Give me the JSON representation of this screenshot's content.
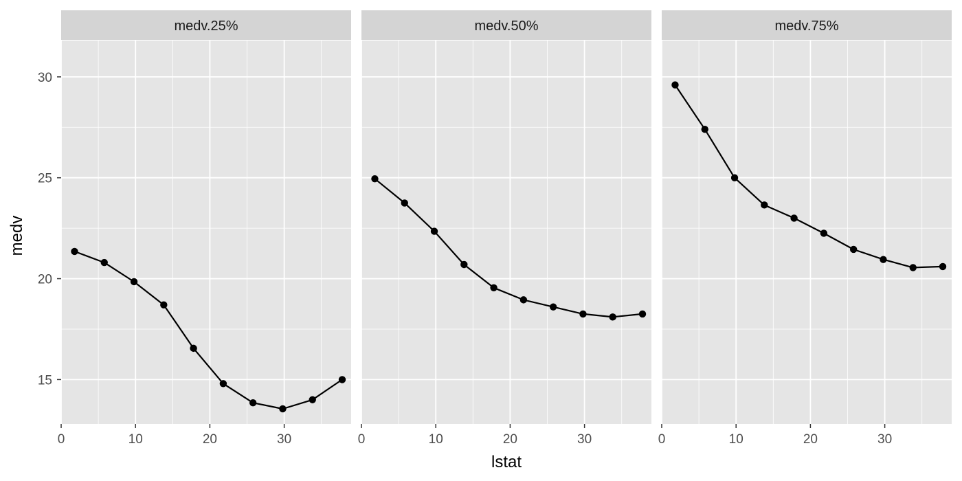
{
  "chart_data": {
    "type": "line",
    "facet_layout": "1 row x 3 columns, shared y axis",
    "xlabel": "lstat",
    "ylabel": "medv",
    "xlim": [
      0,
      39
    ],
    "ylim": [
      12.8,
      31.8
    ],
    "x_ticks": [
      0,
      10,
      20,
      30
    ],
    "y_ticks": [
      15,
      20,
      25,
      30
    ],
    "x_minor_gridlines": [
      5,
      15,
      25,
      35
    ],
    "y_minor_gridlines": [
      17.5,
      22.5,
      27.5
    ],
    "grid": true,
    "x": [
      1.8,
      5.8,
      9.8,
      13.8,
      17.8,
      21.8,
      25.8,
      29.8,
      33.8,
      37.8
    ],
    "panels": [
      {
        "label": "medv.25%",
        "values": [
          21.35,
          20.8,
          19.85,
          18.7,
          16.55,
          14.8,
          13.85,
          13.55,
          14.0,
          15.0
        ]
      },
      {
        "label": "medv.50%",
        "values": [
          24.95,
          23.75,
          22.35,
          20.7,
          19.55,
          18.95,
          18.6,
          18.25,
          18.1,
          18.25
        ]
      },
      {
        "label": "medv.75%",
        "values": [
          29.6,
          27.4,
          25.0,
          23.65,
          23.0,
          22.25,
          21.45,
          20.95,
          20.55,
          20.6
        ]
      }
    ],
    "colors": {
      "panel_background": "#e5e5e5",
      "strip_background": "#d4d4d4",
      "gridline": "#ffffff",
      "line": "#000000",
      "point": "#000000"
    }
  }
}
